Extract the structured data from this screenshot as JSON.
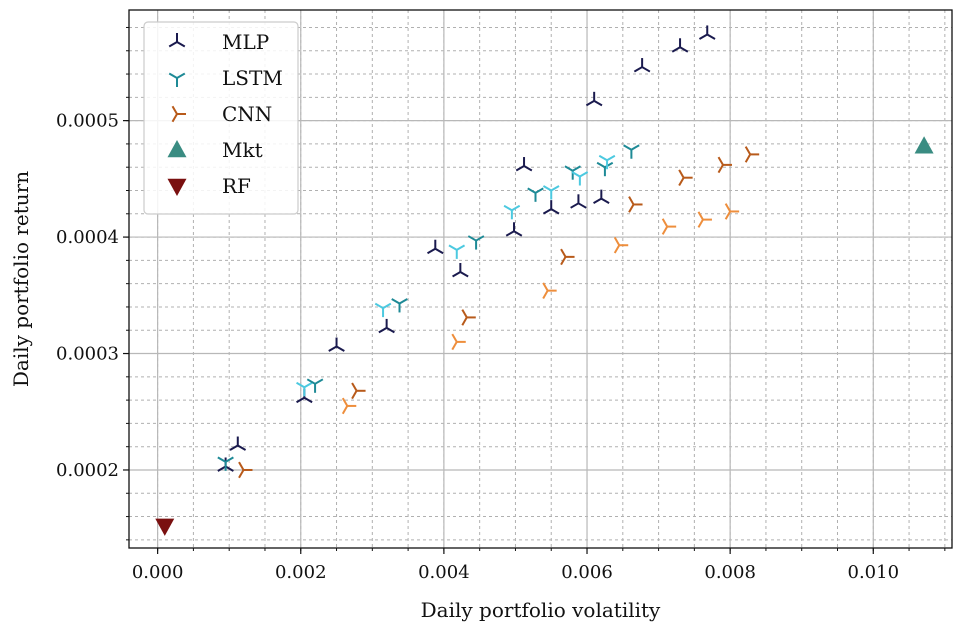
{
  "chart_data": {
    "type": "scatter",
    "title": "",
    "xlabel": "Daily portfolio volatility",
    "ylabel": "Daily portfolio return",
    "xlim": [
      -0.0004,
      0.0111
    ],
    "ylim": [
      0.000133,
      0.000595
    ],
    "x_ticks": [
      0.0,
      0.002,
      0.004,
      0.006,
      0.008,
      0.01
    ],
    "x_tick_labels": [
      "0.000",
      "0.002",
      "0.004",
      "0.006",
      "0.008",
      "0.010"
    ],
    "y_ticks": [
      0.0002,
      0.0003,
      0.0004,
      0.0005
    ],
    "y_tick_labels": [
      "0.0002",
      "0.0003",
      "0.0004",
      "0.0005"
    ],
    "grid": true,
    "minor_grid": true,
    "legend_position": "top-left",
    "series": [
      {
        "name": "MLP",
        "marker": "tri-down",
        "colors": [
          "#1a1a4e"
        ],
        "points": [
          [
            0.00095,
            0.000203
          ],
          [
            0.00112,
            0.000221
          ],
          [
            0.00205,
            0.000262
          ],
          [
            0.0025,
            0.000306
          ],
          [
            0.0032,
            0.000322
          ],
          [
            0.00388,
            0.00039
          ],
          [
            0.00423,
            0.00037
          ],
          [
            0.00498,
            0.000405
          ],
          [
            0.00512,
            0.000461
          ],
          [
            0.0055,
            0.000424
          ],
          [
            0.00588,
            0.000429
          ],
          [
            0.0061,
            0.000517
          ],
          [
            0.0062,
            0.000433
          ],
          [
            0.00677,
            0.000546
          ],
          [
            0.0073,
            0.000563
          ],
          [
            0.00768,
            0.000574
          ]
        ]
      },
      {
        "name": "LSTM",
        "marker": "tri-up",
        "colors": [
          "#1e8a96",
          "#4cc9e0"
        ],
        "points": [
          [
            0.00095,
            0.000207
          ],
          [
            0.00205,
            0.000271
          ],
          [
            0.0022,
            0.000274
          ],
          [
            0.00315,
            0.000339
          ],
          [
            0.00338,
            0.000343
          ],
          [
            0.00418,
            0.000389
          ],
          [
            0.00445,
            0.000397
          ],
          [
            0.00495,
            0.000423
          ],
          [
            0.00528,
            0.000438
          ],
          [
            0.0055,
            0.00044
          ],
          [
            0.0058,
            0.000457
          ],
          [
            0.0059,
            0.000452
          ],
          [
            0.00625,
            0.00046
          ],
          [
            0.00628,
            0.000466
          ],
          [
            0.00662,
            0.000475
          ]
        ]
      },
      {
        "name": "CNN",
        "marker": "tri-left",
        "colors": [
          "#b85a1a",
          "#ee8e3c"
        ],
        "points": [
          [
            0.0012,
            0.0002
          ],
          [
            0.00265,
            0.000255
          ],
          [
            0.00278,
            0.000268
          ],
          [
            0.00418,
            0.00031
          ],
          [
            0.00432,
            0.000331
          ],
          [
            0.00545,
            0.000354
          ],
          [
            0.0057,
            0.000383
          ],
          [
            0.00645,
            0.000393
          ],
          [
            0.00665,
            0.000428
          ],
          [
            0.00712,
            0.000409
          ],
          [
            0.00735,
            0.000451
          ],
          [
            0.00762,
            0.000415
          ],
          [
            0.0079,
            0.000462
          ],
          [
            0.008,
            0.000422
          ],
          [
            0.00828,
            0.000471
          ]
        ]
      },
      {
        "name": "Mkt",
        "marker": "triangle-up",
        "colors": [
          "#3a8c82"
        ],
        "points": [
          [
            0.01071,
            0.000478
          ]
        ]
      },
      {
        "name": "RF",
        "marker": "triangle-down",
        "colors": [
          "#7a1010"
        ],
        "points": [
          [
            0.0001,
            0.000152
          ]
        ]
      }
    ]
  }
}
